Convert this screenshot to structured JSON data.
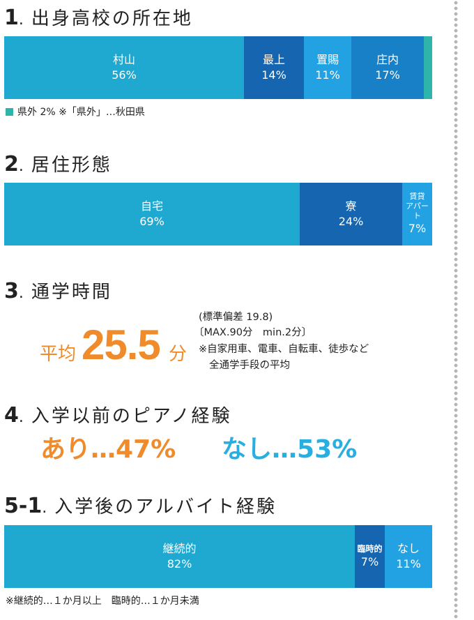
{
  "sections": [
    {
      "num": "1",
      "title": "出身高校の所在地"
    },
    {
      "num": "2",
      "title": "居住形態"
    },
    {
      "num": "3",
      "title": "通学時間"
    },
    {
      "num": "4",
      "title": "入学以前のピアノ経験"
    },
    {
      "num": "5-1",
      "title": "入学後のアルバイト経験"
    }
  ],
  "chart_data": [
    {
      "type": "bar",
      "orientation": "stacked-horizontal",
      "title": "出身高校の所在地",
      "unit": "%",
      "series": [
        {
          "name": "村山",
          "label": "村山",
          "value": 56,
          "display": "56%",
          "color": "#1fa9d1"
        },
        {
          "name": "最上",
          "label": "最上",
          "value": 14,
          "display": "14%",
          "color": "#1565b0"
        },
        {
          "name": "置賜",
          "label": "置賜",
          "value": 11,
          "display": "11%",
          "color": "#22a2e3"
        },
        {
          "name": "庄内",
          "label": "庄内",
          "value": 17,
          "display": "17%",
          "color": "#1780c6"
        },
        {
          "name": "県外",
          "label": "",
          "value": 2,
          "display": "",
          "color": "#2fb4ab"
        }
      ]
    },
    {
      "type": "bar",
      "orientation": "stacked-horizontal",
      "title": "居住形態",
      "unit": "%",
      "series": [
        {
          "name": "自宅",
          "label": "自宅",
          "value": 69,
          "display": "69%",
          "color": "#1fa9d1"
        },
        {
          "name": "寮",
          "label": "寮",
          "value": 24,
          "display": "24%",
          "color": "#1565b0"
        },
        {
          "name": "賃貸アパート",
          "label": "賃貸\nアパート",
          "value": 7,
          "display": "7%",
          "color": "#22a2e3"
        }
      ]
    },
    {
      "type": "bar",
      "orientation": "stacked-horizontal",
      "title": "入学後のアルバイト経験",
      "unit": "%",
      "series": [
        {
          "name": "継続的",
          "label": "継続的",
          "value": 82,
          "display": "82%",
          "color": "#1fa9d1"
        },
        {
          "name": "臨時的",
          "label": "臨時的",
          "value": 7,
          "display": "7%",
          "color": "#1565b0"
        },
        {
          "name": "なし",
          "label": "なし",
          "value": 11,
          "display": "11%",
          "color": "#22a2e3"
        }
      ]
    }
  ],
  "notes": {
    "hometown": "県外 2% ※「県外」…秋田県",
    "parttime": "※継続的…１か月以上　臨時的…１か月未満"
  },
  "commute": {
    "label": "平均",
    "value": "25.5",
    "unit": "分",
    "sd": "(標準偏差 19.8)",
    "range": "〔MAX.90分　min.2分〕",
    "note1": "※自家用車、電車、自転車、徒歩など",
    "note2": "全通学手段の平均"
  },
  "piano": {
    "yes_label": "あり…",
    "yes_value": "47%",
    "no_label": "なし…",
    "no_value": "53%"
  }
}
